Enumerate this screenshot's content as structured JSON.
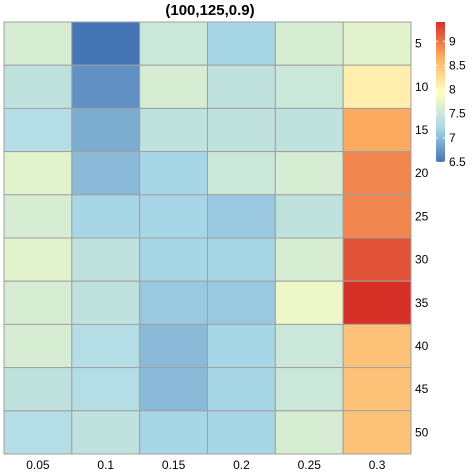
{
  "chart_data": {
    "type": "heatmap",
    "title": "(100,125,0.9)",
    "xlabel": "",
    "ylabel": "",
    "x_categories": [
      "0.05",
      "0.1",
      "0.15",
      "0.2",
      "0.25",
      "0.3"
    ],
    "y_categories": [
      "5",
      "10",
      "15",
      "20",
      "25",
      "30",
      "35",
      "40",
      "45",
      "50"
    ],
    "values": [
      [
        7.6,
        6.5,
        7.5,
        7.2,
        7.6,
        7.7
      ],
      [
        7.4,
        6.7,
        7.6,
        7.4,
        7.5,
        8.1
      ],
      [
        7.3,
        6.9,
        7.4,
        7.4,
        7.4,
        8.7
      ],
      [
        7.7,
        7.0,
        7.2,
        7.5,
        7.6,
        8.9
      ],
      [
        7.6,
        7.2,
        7.2,
        7.1,
        7.4,
        8.9
      ],
      [
        7.7,
        7.4,
        7.2,
        7.2,
        7.6,
        9.2
      ],
      [
        7.6,
        7.4,
        7.1,
        7.1,
        7.8,
        9.4
      ],
      [
        7.6,
        7.3,
        7.0,
        7.2,
        7.5,
        8.5
      ],
      [
        7.4,
        7.3,
        7.0,
        7.2,
        7.5,
        8.5
      ],
      [
        7.3,
        7.4,
        7.2,
        7.2,
        7.6,
        8.5
      ]
    ],
    "color_range": [
      6.5,
      9.4
    ],
    "colorbar_ticks": [
      9,
      8.5,
      8,
      7.5,
      7,
      6.5
    ],
    "colorbar_tick_labels": [
      "9",
      "8.5",
      "8",
      "7.5",
      "7",
      "6.5"
    ],
    "legend_position": "top-right",
    "colors": {
      "low": "#4575b4",
      "midlow": "#abd9e9",
      "mid": "#ffffbf",
      "midhigh": "#fdae61",
      "high": "#d73027",
      "grid": "#a0a0a0"
    }
  }
}
